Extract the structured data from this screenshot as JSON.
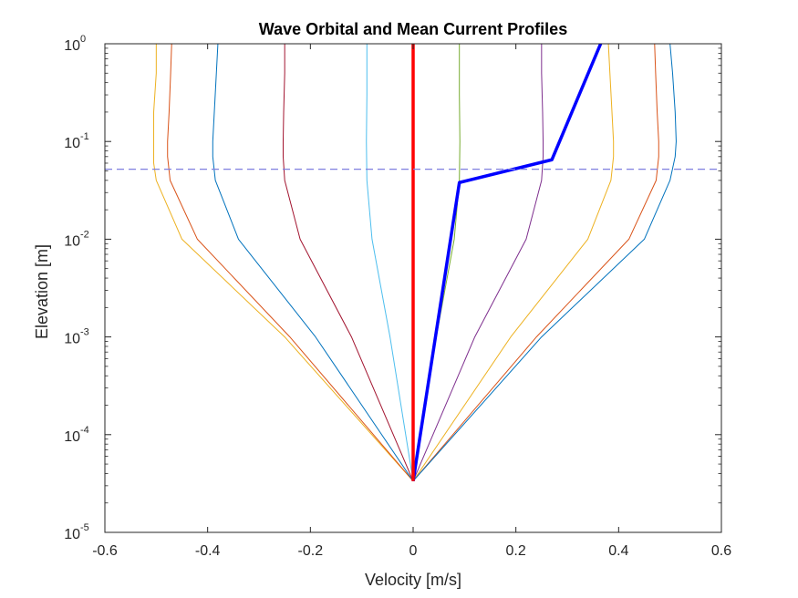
{
  "chart_data": {
    "type": "line",
    "title": "Wave Orbital and Mean Current Profiles",
    "xlabel": "Velocity [m/s]",
    "ylabel": "Elevation [m]",
    "xlim": [
      -0.6,
      0.6
    ],
    "ylim": [
      1e-05,
      1
    ],
    "yscale": "log",
    "grid": false,
    "legend": "none",
    "x_ticks": [
      "-0.6",
      "-0.4",
      "-0.2",
      "0",
      "0.2",
      "0.4",
      "0.6"
    ],
    "y_ticks": [
      {
        "base": "10",
        "exp": "0"
      },
      {
        "base": "10",
        "exp": "-1"
      },
      {
        "base": "10",
        "exp": "-2"
      },
      {
        "base": "10",
        "exp": "-3"
      },
      {
        "base": "10",
        "exp": "-4"
      },
      {
        "base": "10",
        "exp": "-5"
      }
    ],
    "reference_line": {
      "type": "horizontal",
      "y": 0.052,
      "style": "dashed",
      "color": "#7f7fdf"
    },
    "series": [
      {
        "color": "#edb120",
        "width": 1,
        "points": [
          [
            0.0,
            3.35e-05
          ],
          [
            -0.25,
            0.001
          ],
          [
            -0.45,
            0.01
          ],
          [
            -0.5,
            0.04
          ],
          [
            -0.505,
            0.06
          ],
          [
            -0.505,
            0.1
          ],
          [
            -0.505,
            0.2
          ],
          [
            -0.5,
            0.5
          ],
          [
            -0.5,
            1.0
          ]
        ]
      },
      {
        "color": "#d95319",
        "width": 1,
        "points": [
          [
            0.0,
            3.35e-05
          ],
          [
            -0.24,
            0.001
          ],
          [
            -0.42,
            0.01
          ],
          [
            -0.473,
            0.04
          ],
          [
            -0.478,
            0.07
          ],
          [
            -0.478,
            0.1
          ],
          [
            -0.475,
            0.2
          ],
          [
            -0.472,
            0.5
          ],
          [
            -0.47,
            1.0
          ]
        ]
      },
      {
        "color": "#0072bd",
        "width": 1,
        "points": [
          [
            0.0,
            3.35e-05
          ],
          [
            -0.19,
            0.001
          ],
          [
            -0.34,
            0.01
          ],
          [
            -0.385,
            0.04
          ],
          [
            -0.39,
            0.07
          ],
          [
            -0.39,
            0.1
          ],
          [
            -0.387,
            0.2
          ],
          [
            -0.383,
            0.5
          ],
          [
            -0.38,
            1.0
          ]
        ]
      },
      {
        "color": "#a2142f",
        "width": 1,
        "points": [
          [
            0.0,
            3.35e-05
          ],
          [
            -0.12,
            0.001
          ],
          [
            -0.22,
            0.01
          ],
          [
            -0.25,
            0.04
          ],
          [
            -0.253,
            0.07
          ],
          [
            -0.253,
            0.1
          ],
          [
            -0.252,
            0.2
          ],
          [
            -0.25,
            0.5
          ],
          [
            -0.25,
            1.0
          ]
        ]
      },
      {
        "color": "#4dbeee",
        "width": 1,
        "points": [
          [
            0.0,
            3.35e-05
          ],
          [
            -0.045,
            0.001
          ],
          [
            -0.08,
            0.01
          ],
          [
            -0.09,
            0.04
          ],
          [
            -0.091,
            0.1
          ],
          [
            -0.09,
            0.3
          ],
          [
            -0.09,
            1.0
          ]
        ]
      },
      {
        "color": "#77ac30",
        "width": 1,
        "points": [
          [
            0.0,
            3.35e-05
          ],
          [
            0.045,
            0.001
          ],
          [
            0.08,
            0.01
          ],
          [
            0.09,
            0.04
          ],
          [
            0.091,
            0.1
          ],
          [
            0.09,
            0.3
          ],
          [
            0.09,
            1.0
          ]
        ]
      },
      {
        "color": "#7e2f8e",
        "width": 1,
        "points": [
          [
            0.0,
            3.35e-05
          ],
          [
            0.12,
            0.001
          ],
          [
            0.22,
            0.01
          ],
          [
            0.25,
            0.04
          ],
          [
            0.253,
            0.07
          ],
          [
            0.253,
            0.1
          ],
          [
            0.252,
            0.2
          ],
          [
            0.25,
            0.5
          ],
          [
            0.25,
            1.0
          ]
        ]
      },
      {
        "color": "#edb120",
        "width": 1,
        "points": [
          [
            0.0,
            3.35e-05
          ],
          [
            0.19,
            0.001
          ],
          [
            0.34,
            0.01
          ],
          [
            0.385,
            0.04
          ],
          [
            0.39,
            0.07
          ],
          [
            0.39,
            0.1
          ],
          [
            0.387,
            0.2
          ],
          [
            0.383,
            0.5
          ],
          [
            0.38,
            1.0
          ]
        ]
      },
      {
        "color": "#d95319",
        "width": 1,
        "points": [
          [
            0.0,
            3.35e-05
          ],
          [
            0.24,
            0.001
          ],
          [
            0.42,
            0.01
          ],
          [
            0.473,
            0.04
          ],
          [
            0.478,
            0.07
          ],
          [
            0.478,
            0.1
          ],
          [
            0.475,
            0.2
          ],
          [
            0.472,
            0.5
          ],
          [
            0.47,
            1.0
          ]
        ]
      },
      {
        "color": "#0072bd",
        "width": 1,
        "points": [
          [
            0.0,
            3.35e-05
          ],
          [
            0.25,
            0.001
          ],
          [
            0.45,
            0.01
          ],
          [
            0.5,
            0.04
          ],
          [
            0.51,
            0.07
          ],
          [
            0.512,
            0.1
          ],
          [
            0.51,
            0.2
          ],
          [
            0.505,
            0.5
          ],
          [
            0.5,
            1.0
          ]
        ]
      },
      {
        "color": "#0000ff",
        "width": 3.5,
        "points": [
          [
            0.0,
            3.35e-05
          ],
          [
            0.09,
            0.038
          ],
          [
            0.27,
            0.065
          ],
          [
            0.365,
            1.0
          ]
        ]
      },
      {
        "color": "#ff0000",
        "width": 3.5,
        "points": [
          [
            0.0,
            3.35e-05
          ],
          [
            0.0,
            1.0
          ]
        ]
      }
    ]
  }
}
